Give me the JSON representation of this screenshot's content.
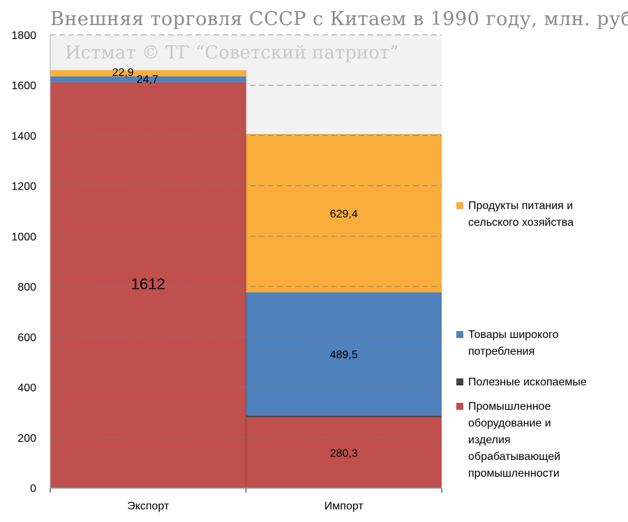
{
  "chart_data": {
    "type": "bar",
    "stacked": true,
    "title": "Внешняя торговля СССР с Китаем в 1990 году, млн. руб",
    "watermark": "Истмат © ТГ “Советский патриот”",
    "categories": [
      "Экспорт",
      "Импорт"
    ],
    "ylim": [
      0,
      1800
    ],
    "yticks": [
      0,
      200,
      400,
      600,
      800,
      1000,
      1200,
      1400,
      1600,
      1800
    ],
    "grid": true,
    "legend_position": "right",
    "series": [
      {
        "name": "Промышленное оборудование и изделия обрабатывающей промышленности",
        "legend_lines": [
          "Промышленное",
          "оборудование и",
          "изделия",
          "обрабатывающей",
          "промышленности"
        ],
        "color": "#C0504D",
        "values": [
          1612,
          280.3
        ],
        "labels": [
          "1612",
          "280,3"
        ]
      },
      {
        "name": "Полезные ископаемые",
        "legend_lines": [
          "Полезные ископаемые"
        ],
        "color": "#404040",
        "values": [
          0,
          7
        ],
        "labels": [
          "",
          ""
        ]
      },
      {
        "name": "Товары широкого потребления",
        "legend_lines": [
          "Товары широкого",
          "потребления"
        ],
        "color": "#4F81BD",
        "values": [
          22.9,
          489.5
        ],
        "labels": [
          "22,9",
          "489,5"
        ]
      },
      {
        "name": "Продукты питания и сельского хозяйства",
        "legend_lines": [
          "Продукты питания и",
          "сельского хозяйства"
        ],
        "color": "#F9AE3B",
        "values": [
          24.7,
          629.4
        ],
        "labels": [
          "24,7",
          "629,4"
        ]
      }
    ]
  }
}
